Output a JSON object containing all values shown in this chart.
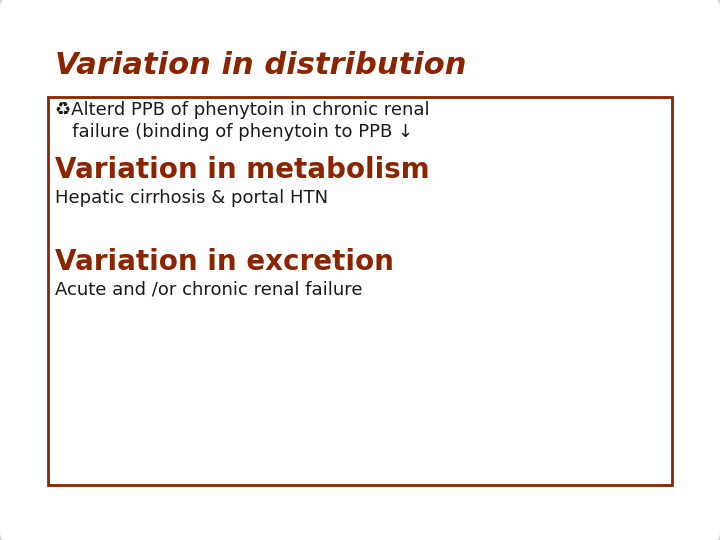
{
  "background_color": "#d8d8d8",
  "slide_bg": "#ffffff",
  "border_color": "#8B2500",
  "title": "Variation in distribution",
  "title_color": "#8B2500",
  "title_fontsize": 22,
  "bullet_text_line1": "♻Alterd PPB of phenytoin in chronic renal",
  "bullet_text_line2": "   failure (binding of phenytoin to PPB ↓",
  "bullet_color": "#1a1a1a",
  "bullet_fontsize": 13,
  "section2_title": "Variation in metabolism",
  "section2_color": "#8B2500",
  "section2_fontsize": 20,
  "section2_sub": "Hepatic cirrhosis & portal HTN",
  "section2_sub_color": "#1a1a1a",
  "section2_sub_fontsize": 13,
  "section3_title": "Variation in excretion",
  "section3_color": "#8B2500",
  "section3_fontsize": 20,
  "section3_sub": "Acute and /or chronic renal failure",
  "section3_sub_color": "#1a1a1a",
  "section3_sub_fontsize": 13
}
